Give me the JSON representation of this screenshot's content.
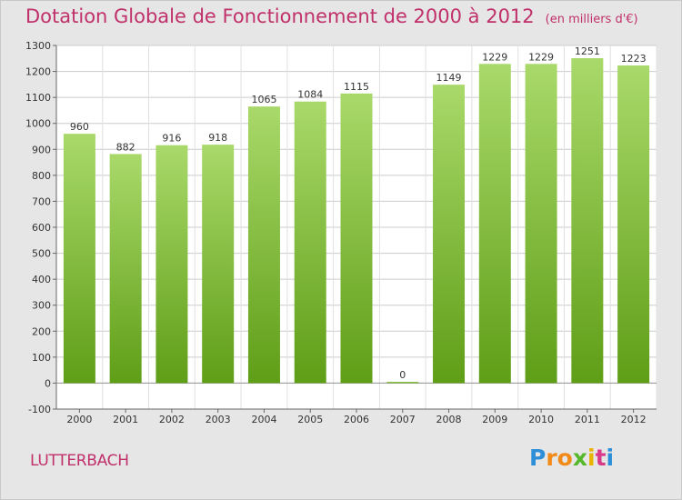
{
  "title": "Dotation Globale de Fonctionnement de 2000 à 2012",
  "unit_note": "(en milliers d'€)",
  "commune": "LUTTERBACH",
  "logo": {
    "text": "Proxiti",
    "letters": [
      "P",
      "r",
      "o",
      "x",
      "i",
      "t",
      "i"
    ],
    "colors": [
      "#2e8fd8",
      "#f28a1a",
      "#f28a1a",
      "#55b82a",
      "#e8b400",
      "#d83a8a",
      "#2e8fd8"
    ]
  },
  "colors": {
    "title": "#c0306a",
    "bar": "#6bab1f",
    "bar_light": "#a9d96a",
    "background": "#e6e6e6"
  },
  "chart_data": {
    "type": "bar",
    "title": "Dotation Globale de Fonctionnement de 2000 à 2012",
    "categories": [
      "2000",
      "2001",
      "2002",
      "2003",
      "2004",
      "2005",
      "2006",
      "2007",
      "2008",
      "2009",
      "2010",
      "2011",
      "2012"
    ],
    "values": [
      960,
      882,
      916,
      918,
      1065,
      1084,
      1115,
      0,
      1149,
      1229,
      1229,
      1251,
      1223
    ],
    "ylim": [
      -100,
      1300
    ],
    "yticks": [
      -100,
      0,
      100,
      200,
      300,
      400,
      500,
      600,
      700,
      800,
      900,
      1000,
      1100,
      1200,
      1300
    ],
    "grid": true,
    "xlabel": "",
    "ylabel": ""
  }
}
